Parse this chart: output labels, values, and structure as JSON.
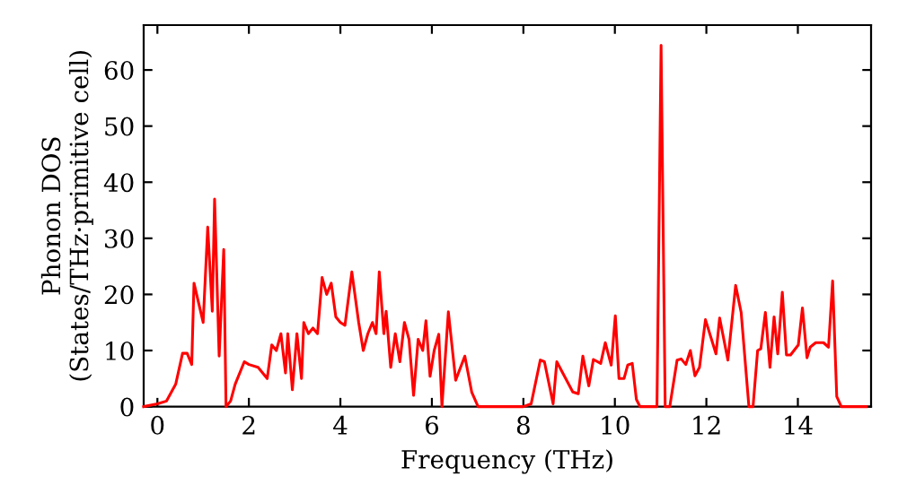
{
  "chart_data": {
    "type": "line",
    "xlabel": "Frequency (THz)",
    "ylabel": "Phonon DOS\n(States/THz·primitive cell)",
    "xlim": [
      -0.3,
      15.6
    ],
    "ylim": [
      0,
      68
    ],
    "xticks": [
      0,
      2,
      4,
      6,
      8,
      10,
      12,
      14
    ],
    "yticks": [
      0,
      10,
      20,
      30,
      40,
      50,
      60
    ],
    "grid": false,
    "legend": false,
    "marker": "none",
    "line_style": "solid",
    "series": [
      {
        "color": "#ff0000",
        "x": [
          -0.3,
          0,
          0.2,
          0.4,
          0.55,
          0.65,
          0.75,
          0.8,
          1.0,
          1.1,
          1.2,
          1.25,
          1.35,
          1.45,
          1.5,
          1.6,
          1.7,
          1.9,
          2.0,
          2.2,
          2.4,
          2.5,
          2.6,
          2.7,
          2.8,
          2.85,
          2.95,
          3.05,
          3.15,
          3.2,
          3.3,
          3.4,
          3.5,
          3.6,
          3.7,
          3.8,
          3.9,
          4.0,
          4.1,
          4.25,
          4.4,
          4.5,
          4.6,
          4.7,
          4.78,
          4.85,
          4.95,
          5.0,
          5.1,
          5.2,
          5.3,
          5.4,
          5.5,
          5.6,
          5.7,
          5.8,
          5.87,
          5.96,
          6.05,
          6.15,
          6.22,
          6.36,
          6.52,
          6.72,
          6.87,
          7.01,
          8.0,
          8.17,
          8.37,
          8.46,
          8.65,
          8.73,
          9.08,
          9.2,
          9.3,
          9.43,
          9.53,
          9.69,
          9.79,
          9.92,
          10.01,
          10.09,
          10.2,
          10.28,
          10.38,
          10.47,
          10.55,
          10.92,
          11.01,
          11.1,
          11.2,
          11.36,
          11.45,
          11.55,
          11.65,
          11.75,
          11.85,
          11.98,
          12.21,
          12.29,
          12.47,
          12.64,
          12.76,
          12.93,
          13.02,
          13.12,
          13.19,
          13.29,
          13.39,
          13.48,
          13.56,
          13.66,
          13.75,
          13.84,
          14.01,
          14.1,
          14.2,
          14.27,
          14.39,
          14.56,
          14.67,
          14.76,
          14.85,
          14.95,
          15.5
        ],
        "values": [
          0,
          0.5,
          1,
          4,
          9.5,
          9.5,
          7.5,
          22,
          15,
          32,
          17,
          37,
          9,
          28,
          0,
          1,
          4,
          8,
          7.5,
          7,
          5,
          11,
          10,
          13,
          6,
          13,
          3,
          13,
          5,
          15,
          13,
          14,
          13,
          23,
          20,
          22,
          16,
          15,
          14.5,
          24,
          15,
          10,
          13,
          15,
          13,
          24,
          13,
          17,
          7,
          13,
          8,
          15,
          12,
          2,
          12,
          10,
          15.3,
          5.4,
          10,
          12.9,
          0,
          16.9,
          4.7,
          9,
          2.6,
          0,
          0,
          0.5,
          8.3,
          8,
          0.5,
          8,
          2.6,
          2.3,
          9,
          3.7,
          8.4,
          7.7,
          11.4,
          7.4,
          16.2,
          5,
          5,
          7.4,
          7.7,
          1.3,
          0,
          0,
          64.4,
          0,
          0,
          8.3,
          8.5,
          7.5,
          10,
          5.5,
          7,
          15.5,
          9.4,
          15.8,
          8.3,
          21.6,
          16.8,
          0,
          0,
          10,
          10.3,
          16.8,
          7,
          16,
          9.4,
          20.4,
          9.2,
          9.2,
          11,
          17.6,
          8.7,
          10.6,
          11.4,
          11.4,
          10.6,
          22.4,
          1.8,
          0,
          0
        ]
      }
    ]
  }
}
